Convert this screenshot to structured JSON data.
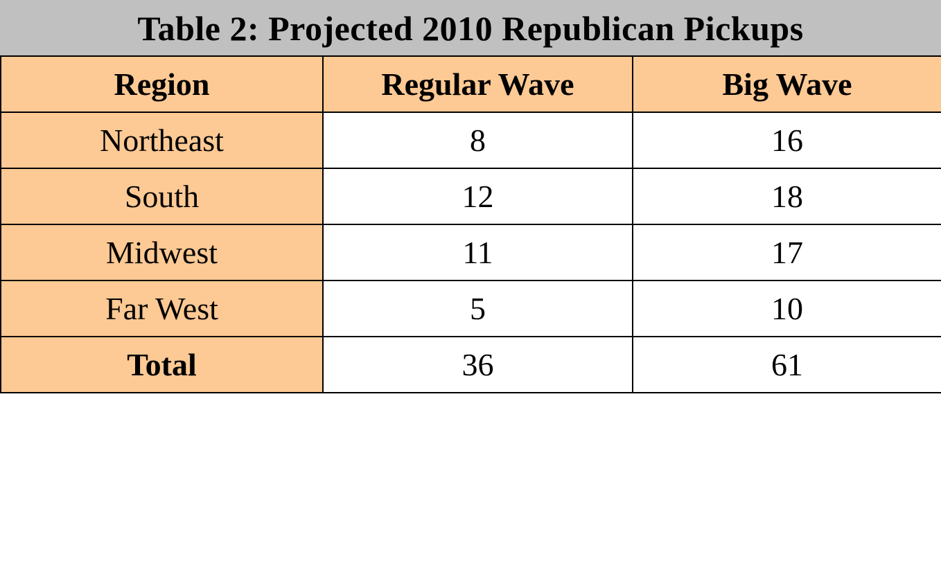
{
  "title": "Table 2: Projected 2010 Republican Pickups",
  "table": {
    "headers": [
      "Region",
      "Regular Wave",
      "Big Wave"
    ],
    "rows": [
      {
        "region": "Northeast",
        "regular_wave": "8",
        "big_wave": "16"
      },
      {
        "region": "South",
        "regular_wave": "12",
        "big_wave": "18"
      },
      {
        "region": "Midwest",
        "regular_wave": "11",
        "big_wave": "17"
      },
      {
        "region": "Far West",
        "regular_wave": "5",
        "big_wave": "10"
      }
    ],
    "total": {
      "region": "Total",
      "regular_wave": "36",
      "big_wave": "61"
    }
  },
  "colors": {
    "title_bar_bg": "#c0c0c0",
    "header_bg": "#fdc994",
    "value_cell_bg": "#ffffff",
    "border": "#000000",
    "text": "#000000"
  },
  "chart_data": {
    "type": "table",
    "title": "Table 2: Projected 2010 Republican Pickups",
    "columns": [
      "Region",
      "Regular Wave",
      "Big Wave"
    ],
    "rows": [
      [
        "Northeast",
        8,
        16
      ],
      [
        "South",
        12,
        18
      ],
      [
        "Midwest",
        11,
        17
      ],
      [
        "Far West",
        5,
        10
      ],
      [
        "Total",
        36,
        61
      ]
    ]
  }
}
